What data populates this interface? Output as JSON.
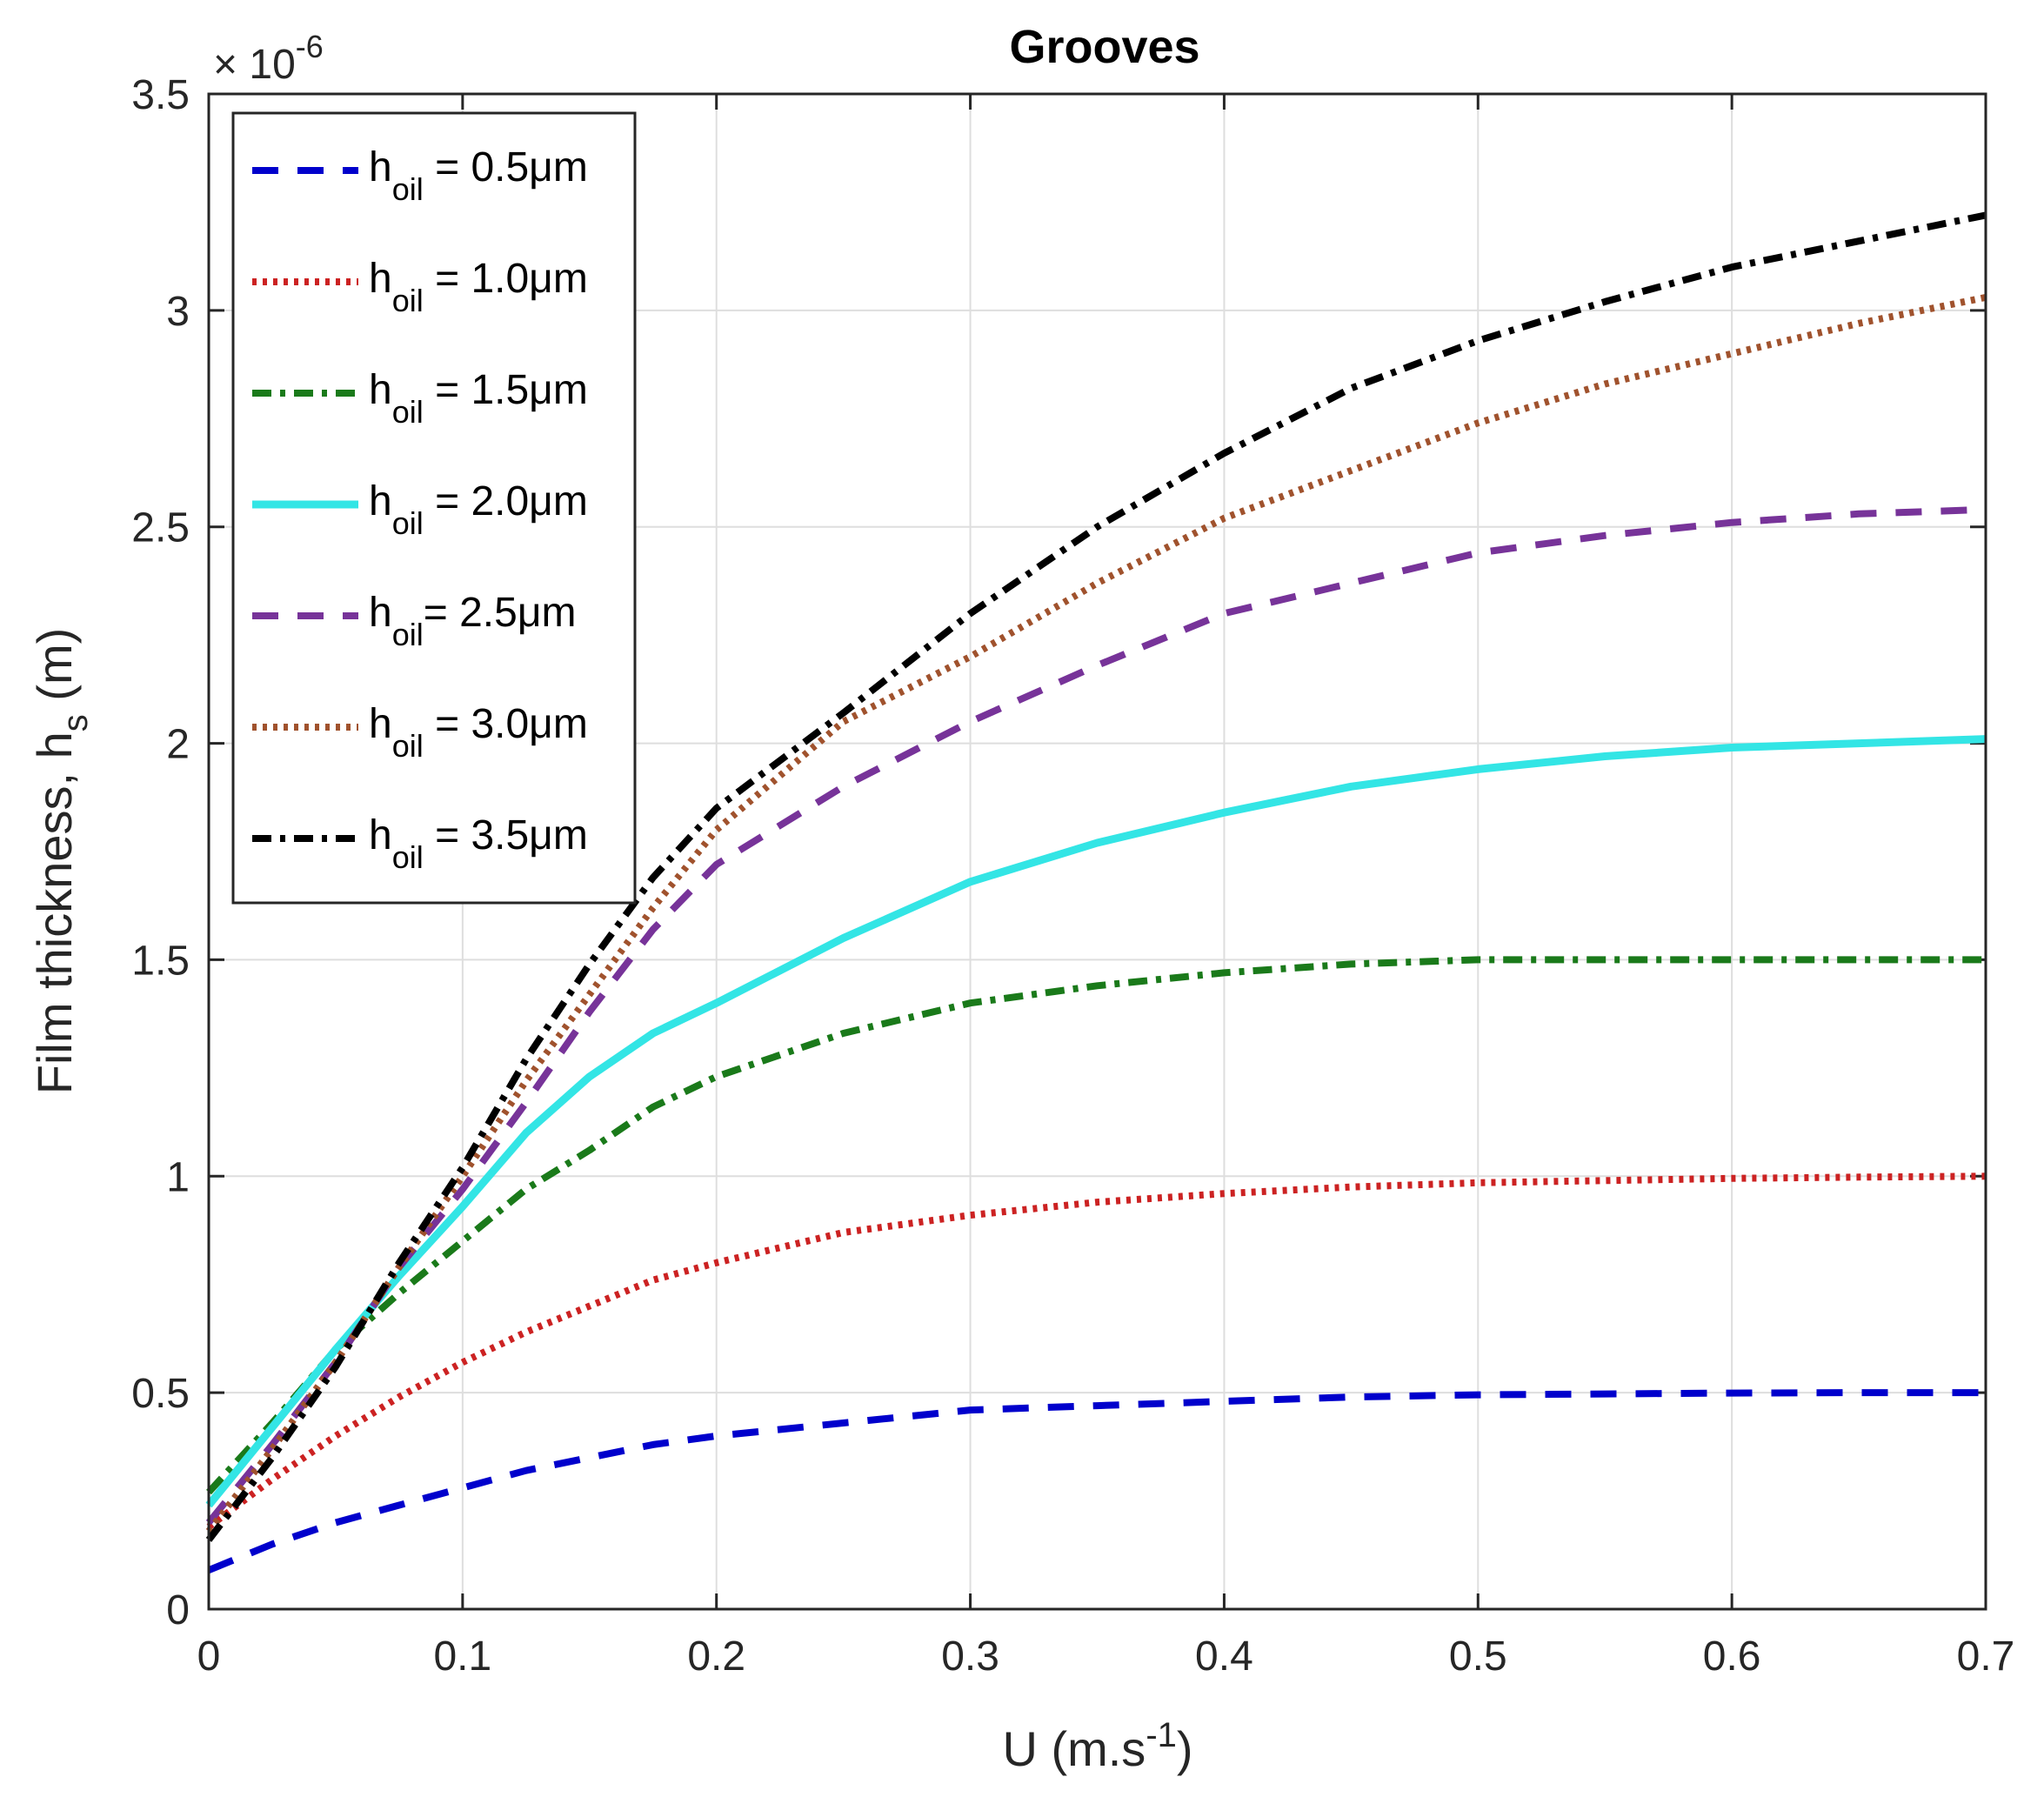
{
  "chart_data": {
    "type": "line",
    "title": "Grooves",
    "xlabel": "U (m.s",
    "xlabel_sup": "-1",
    "xlabel_end": ")",
    "ylabel": "Film thickness, h",
    "ylabel_sub": "s",
    "ylabel_end": " (m)",
    "y_exponent_prefix": "× 10",
    "y_exponent_sup": "-6",
    "xlim": [
      0,
      0.7
    ],
    "ylim": [
      0,
      3.5
    ],
    "xticks": [
      "0",
      "0.1",
      "0.2",
      "0.3",
      "0.4",
      "0.5",
      "0.6",
      "0.7"
    ],
    "yticks": [
      "0",
      "0.5",
      "1",
      "1.5",
      "2",
      "2.5",
      "3",
      "3.5"
    ],
    "grid": true,
    "legend_position": "top-left",
    "x": [
      0,
      0.025,
      0.05,
      0.075,
      0.1,
      0.125,
      0.15,
      0.175,
      0.2,
      0.25,
      0.3,
      0.35,
      0.4,
      0.45,
      0.5,
      0.55,
      0.6,
      0.65,
      0.7
    ],
    "series": [
      {
        "name_main": "h",
        "name_sub": "oil",
        "name_rest": " = 0.5μm",
        "color": "#0000cc",
        "style": "dashed",
        "values": [
          0.09,
          0.15,
          0.2,
          0.24,
          0.28,
          0.32,
          0.35,
          0.38,
          0.4,
          0.43,
          0.46,
          0.47,
          0.48,
          0.49,
          0.495,
          0.497,
          0.499,
          0.5,
          0.5
        ]
      },
      {
        "name_main": "h",
        "name_sub": "oil",
        "name_rest": " = 1.0μm",
        "color": "#cc2222",
        "style": "dotted",
        "values": [
          0.19,
          0.3,
          0.4,
          0.49,
          0.57,
          0.64,
          0.7,
          0.76,
          0.8,
          0.87,
          0.91,
          0.94,
          0.96,
          0.975,
          0.985,
          0.99,
          0.995,
          0.998,
          1.0
        ]
      },
      {
        "name_main": "h",
        "name_sub": "oil",
        "name_rest": " = 1.5μm",
        "color": "#1a7a1a",
        "style": "dashdot",
        "values": [
          0.27,
          0.43,
          0.6,
          0.73,
          0.85,
          0.97,
          1.06,
          1.16,
          1.23,
          1.33,
          1.4,
          1.44,
          1.47,
          1.49,
          1.5,
          1.5,
          1.5,
          1.5,
          1.5
        ]
      },
      {
        "name_main": "h",
        "name_sub": "oil",
        "name_rest": " = 2.0μm",
        "color": "#33e5e5",
        "style": "solid",
        "values": [
          0.24,
          0.42,
          0.6,
          0.77,
          0.93,
          1.1,
          1.23,
          1.33,
          1.4,
          1.55,
          1.68,
          1.77,
          1.84,
          1.9,
          1.94,
          1.97,
          1.99,
          2.0,
          2.01
        ]
      },
      {
        "name_main": "h",
        "name_sub": "oil",
        "name_rest": "= 2.5μm",
        "color": "#773399",
        "style": "dashed",
        "values": [
          0.2,
          0.38,
          0.57,
          0.79,
          0.97,
          1.17,
          1.38,
          1.57,
          1.72,
          1.9,
          2.05,
          2.18,
          2.3,
          2.37,
          2.44,
          2.48,
          2.51,
          2.53,
          2.54
        ]
      },
      {
        "name_main": "h",
        "name_sub": "oil",
        "name_rest": " = 3.0μm",
        "color": "#a0522d",
        "style": "dotted",
        "values": [
          0.18,
          0.37,
          0.57,
          0.79,
          1.0,
          1.22,
          1.42,
          1.62,
          1.8,
          2.05,
          2.2,
          2.37,
          2.52,
          2.63,
          2.74,
          2.83,
          2.9,
          2.97,
          3.03
        ]
      },
      {
        "name_main": "h",
        "name_sub": "oil",
        "name_rest": " = 3.5μm",
        "color": "#000000",
        "style": "dashdot",
        "values": [
          0.16,
          0.35,
          0.56,
          0.8,
          1.02,
          1.27,
          1.49,
          1.69,
          1.85,
          2.07,
          2.3,
          2.5,
          2.67,
          2.82,
          2.93,
          3.02,
          3.1,
          3.16,
          3.22
        ]
      }
    ]
  }
}
